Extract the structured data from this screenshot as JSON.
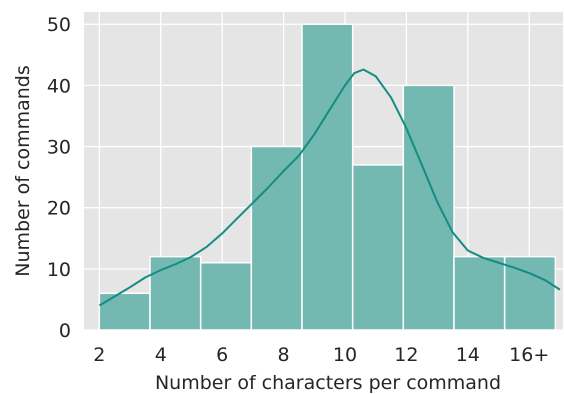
{
  "chart_data": {
    "type": "bar",
    "subtype": "histogram_with_kde",
    "title": "",
    "xlabel": "Number of characters per command",
    "ylabel": "Number of commands",
    "xlim": [
      1.5,
      17.1
    ],
    "ylim": [
      0,
      52
    ],
    "x_ticks": [
      2,
      4,
      6,
      8,
      10,
      12,
      14,
      16
    ],
    "x_tick_labels": [
      "2",
      "4",
      "6",
      "8",
      "10",
      "12",
      "14",
      "16+"
    ],
    "y_ticks": [
      0,
      10,
      20,
      30,
      40,
      50
    ],
    "y_tick_labels": [
      "0",
      "10",
      "20",
      "30",
      "40",
      "50"
    ],
    "bins": [
      {
        "x0": 2.0,
        "x1": 3.65,
        "value": 6
      },
      {
        "x0": 3.65,
        "x1": 5.3,
        "value": 12
      },
      {
        "x0": 5.3,
        "x1": 6.95,
        "value": 11
      },
      {
        "x0": 6.95,
        "x1": 8.6,
        "value": 30
      },
      {
        "x0": 8.6,
        "x1": 10.25,
        "value": 50
      },
      {
        "x0": 10.25,
        "x1": 11.9,
        "value": 27
      },
      {
        "x0": 11.9,
        "x1": 13.55,
        "value": 40
      },
      {
        "x0": 13.55,
        "x1": 15.2,
        "value": 12
      },
      {
        "x0": 15.2,
        "x1": 16.85,
        "value": 12
      }
    ],
    "kde": {
      "x": [
        2.0,
        2.5,
        3.0,
        3.5,
        4.0,
        4.5,
        5.0,
        5.5,
        6.0,
        6.5,
        7.0,
        7.5,
        8.0,
        8.5,
        9.0,
        9.5,
        10.0,
        10.3,
        10.6,
        11.0,
        11.5,
        12.0,
        12.5,
        13.0,
        13.5,
        14.0,
        14.5,
        15.0,
        15.5,
        16.0,
        16.5,
        17.0
      ],
      "y": [
        4.0,
        5.5,
        7.0,
        8.6,
        9.8,
        10.8,
        12.0,
        13.6,
        15.8,
        18.3,
        20.8,
        23.3,
        26.0,
        28.5,
        32.0,
        36.0,
        40.0,
        42.0,
        42.6,
        41.5,
        38.0,
        33.0,
        27.0,
        21.0,
        16.0,
        13.0,
        11.8,
        11.0,
        10.2,
        9.3,
        8.2,
        6.6
      ]
    },
    "grid": true,
    "legend": false,
    "colors": {
      "bar_fill": "#73b8b1",
      "bar_edge": "#ffffff",
      "kde_line": "#138d82",
      "plot_background": "#e5e5e5",
      "grid": "#ffffff",
      "text": "#262626"
    }
  }
}
